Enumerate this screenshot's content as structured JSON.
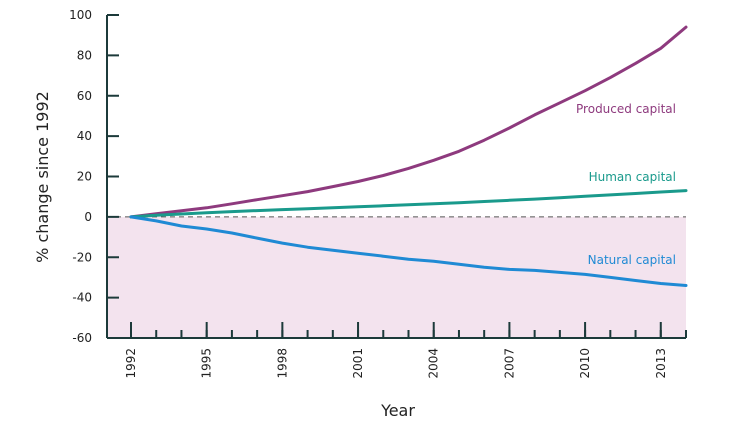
{
  "chart_data": {
    "type": "line",
    "xlabel": "Year",
    "ylabel": "% change since 1992",
    "xlim": [
      1992,
      2014
    ],
    "ylim": [
      -60,
      100
    ],
    "y_ticks": [
      100,
      80,
      60,
      40,
      20,
      0,
      -20,
      -40,
      -60
    ],
    "x_tick_labels": [
      "1992",
      "1995",
      "1998",
      "2001",
      "2004",
      "2007",
      "2010",
      "2013"
    ],
    "x_tick_values": [
      1992,
      1995,
      1998,
      2001,
      2004,
      2007,
      2010,
      2013
    ],
    "minor_x_ticks": [
      1992,
      1993,
      1994,
      1995,
      1996,
      1997,
      1998,
      1999,
      2000,
      2001,
      2002,
      2003,
      2004,
      2005,
      2006,
      2007,
      2008,
      2009,
      2010,
      2011,
      2012,
      2013,
      2014
    ],
    "zero_line": "dashed",
    "negative_region_shaded": true,
    "colors": {
      "axis": "#1c3a3a",
      "zero_line": "#555555",
      "negative_fill": "#f3e3ee"
    },
    "series": [
      {
        "name": "Produced capital",
        "color": "#8e3a7e",
        "x": [
          1992,
          1993,
          1994,
          1995,
          1996,
          1997,
          1998,
          1999,
          2000,
          2001,
          2002,
          2003,
          2004,
          2005,
          2006,
          2007,
          2008,
          2009,
          2010,
          2011,
          2012,
          2013,
          2014
        ],
        "y": [
          0,
          1.5,
          3,
          4.5,
          6.5,
          8.5,
          10.5,
          12.5,
          15,
          17.5,
          20.5,
          24,
          28,
          32.5,
          38,
          44,
          50.5,
          56.5,
          62.5,
          69,
          76,
          83.5,
          94
        ]
      },
      {
        "name": "Human capital",
        "color": "#1a9a8c",
        "x": [
          1992,
          1993,
          1994,
          1995,
          1996,
          1997,
          1998,
          1999,
          2000,
          2001,
          2002,
          2003,
          2004,
          2005,
          2006,
          2007,
          2008,
          2009,
          2010,
          2011,
          2012,
          2013,
          2014
        ],
        "y": [
          0,
          0.8,
          1.4,
          2,
          2.6,
          3.1,
          3.6,
          4,
          4.5,
          5,
          5.5,
          6,
          6.5,
          7,
          7.6,
          8.2,
          8.8,
          9.5,
          10.2,
          10.9,
          11.6,
          12.3,
          13
        ]
      },
      {
        "name": "Natural capital",
        "color": "#1f8ad4",
        "x": [
          1992,
          1993,
          1994,
          1995,
          1996,
          1997,
          1998,
          1999,
          2000,
          2001,
          2002,
          2003,
          2004,
          2005,
          2006,
          2007,
          2008,
          2009,
          2010,
          2011,
          2012,
          2013,
          2014
        ],
        "y": [
          0,
          -2,
          -4.5,
          -6,
          -8,
          -10.5,
          -13,
          -15,
          -16.5,
          -18,
          -19.5,
          -21,
          -22,
          -23.5,
          -25,
          -26,
          -26.5,
          -27.5,
          -28.5,
          -30,
          -31.5,
          -33,
          -34
        ]
      }
    ]
  }
}
